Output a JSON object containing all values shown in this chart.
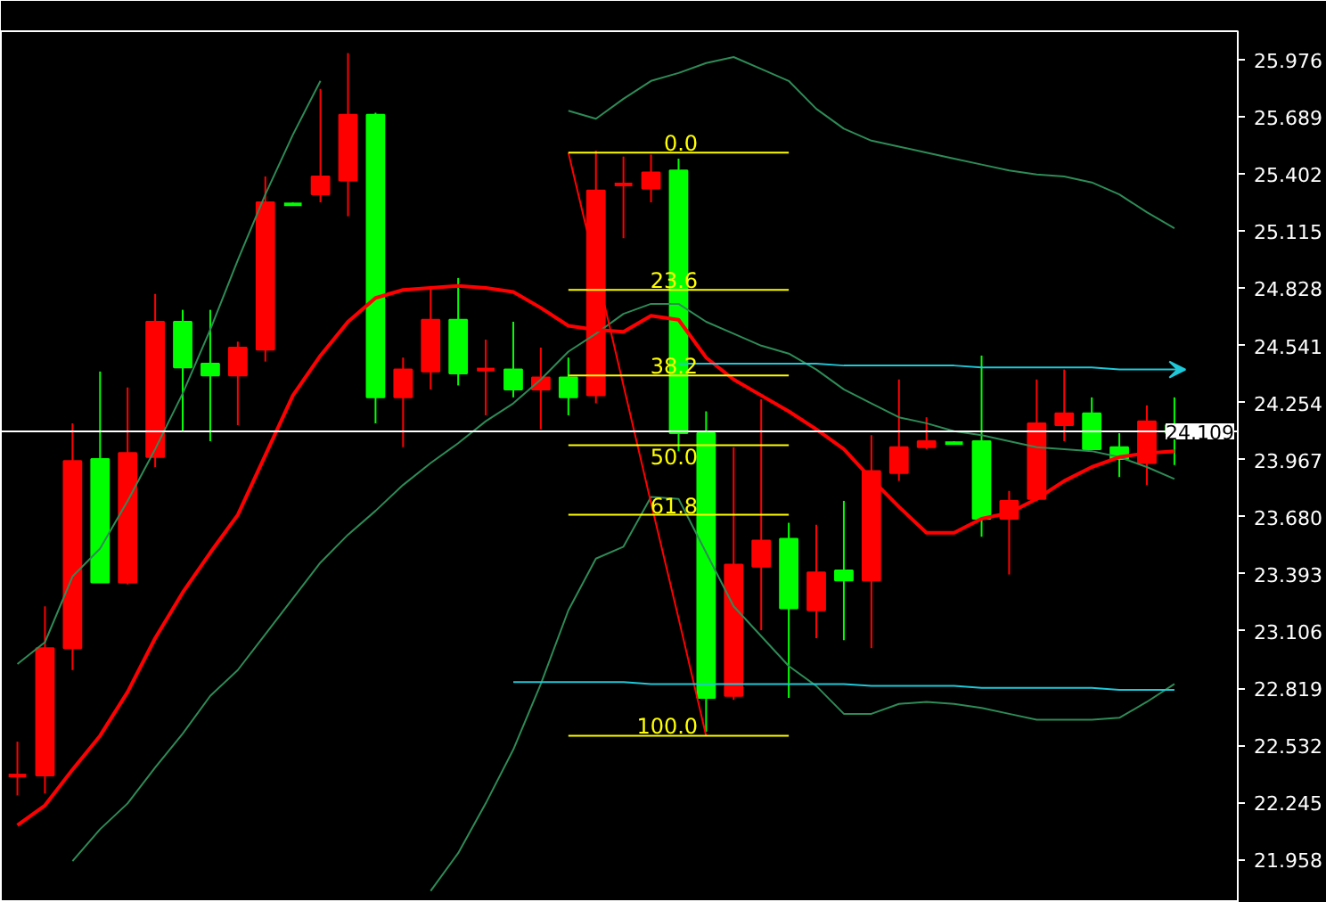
{
  "chart_data": {
    "type": "candlestick",
    "categories": [
      null,
      null,
      null,
      null,
      null,
      null,
      null,
      null,
      null,
      null,
      null,
      null,
      null,
      null,
      null,
      null,
      null,
      null,
      null,
      null,
      null,
      null,
      null,
      null,
      null,
      null,
      null,
      null,
      null,
      null,
      null,
      null,
      null,
      null,
      null,
      null,
      null,
      null,
      null,
      null,
      null,
      null,
      null
    ],
    "ohlc": [
      [
        22.37,
        22.55,
        22.28,
        22.38
      ],
      [
        22.38,
        23.23,
        22.29,
        23.02
      ],
      [
        23.02,
        24.15,
        22.91,
        23.96
      ],
      [
        23.97,
        24.41,
        23.35,
        23.35
      ],
      [
        23.35,
        24.33,
        23.34,
        24.0
      ],
      [
        23.98,
        24.8,
        23.93,
        24.66
      ],
      [
        24.66,
        24.72,
        24.11,
        24.43
      ],
      [
        24.45,
        24.72,
        24.06,
        24.39
      ],
      [
        24.39,
        24.56,
        24.14,
        24.53
      ],
      [
        24.52,
        25.39,
        24.46,
        25.26
      ],
      [
        25.26,
        25.26,
        25.25,
        25.25
      ],
      [
        25.3,
        25.83,
        25.26,
        25.39
      ],
      [
        25.37,
        26.01,
        25.19,
        25.7
      ],
      [
        25.7,
        25.71,
        24.15,
        24.28
      ],
      [
        24.28,
        24.48,
        24.03,
        24.42
      ],
      [
        24.41,
        24.83,
        24.32,
        24.67
      ],
      [
        24.67,
        24.88,
        24.34,
        24.4
      ],
      [
        24.41,
        24.57,
        24.19,
        24.42
      ],
      [
        24.42,
        24.66,
        24.28,
        24.32
      ],
      [
        24.32,
        24.53,
        24.12,
        24.38
      ],
      [
        24.38,
        24.48,
        24.19,
        24.28
      ],
      [
        24.29,
        25.52,
        24.25,
        25.32
      ],
      [
        25.34,
        25.49,
        25.08,
        25.35
      ],
      [
        25.33,
        25.5,
        25.26,
        25.41
      ],
      [
        25.42,
        25.48,
        24.01,
        24.1
      ],
      [
        24.1,
        24.21,
        22.6,
        22.77
      ],
      [
        22.78,
        24.03,
        22.76,
        23.44
      ],
      [
        23.43,
        24.27,
        23.11,
        23.56
      ],
      [
        23.57,
        23.65,
        22.77,
        23.22
      ],
      [
        23.21,
        23.64,
        23.07,
        23.4
      ],
      [
        23.41,
        23.76,
        23.06,
        23.36
      ],
      [
        23.36,
        24.09,
        23.02,
        23.91
      ],
      [
        23.9,
        24.37,
        23.86,
        24.03
      ],
      [
        24.03,
        24.18,
        24.02,
        24.06
      ],
      [
        24.06,
        24.06,
        24.05,
        24.05
      ],
      [
        24.06,
        24.49,
        23.58,
        23.67
      ],
      [
        23.67,
        23.81,
        23.39,
        23.76
      ],
      [
        23.77,
        24.37,
        23.76,
        24.15
      ],
      [
        24.14,
        24.42,
        24.06,
        24.2
      ],
      [
        24.2,
        24.28,
        24.02,
        24.02
      ],
      [
        24.03,
        24.1,
        23.88,
        23.97
      ],
      [
        23.95,
        24.24,
        23.84,
        24.16
      ],
      [
        24.14,
        24.28,
        23.94,
        24.1
      ]
    ],
    "colors": [
      "#ff0000",
      "#ff0000",
      "#ff0000",
      "#00ff00",
      "#ff0000",
      "#ff0000",
      "#00ff00",
      "#00ff00",
      "#ff0000",
      "#ff0000",
      "#00ff00",
      "#ff0000",
      "#ff0000",
      "#00ff00",
      "#ff0000",
      "#ff0000",
      "#00ff00",
      "#ff0000",
      "#00ff00",
      "#ff0000",
      "#00ff00",
      "#ff0000",
      "#ff0000",
      "#ff0000",
      "#00ff00",
      "#00ff00",
      "#ff0000",
      "#ff0000",
      "#00ff00",
      "#ff0000",
      "#00ff00",
      "#ff0000",
      "#ff0000",
      "#ff0000",
      "#00ff00",
      "#00ff00",
      "#ff0000",
      "#ff0000",
      "#ff0000",
      "#00ff00",
      "#00ff00",
      "#ff0000",
      "#00ff00"
    ],
    "series": [
      {
        "type": "line",
        "color": "#2e8b57",
        "values": [
          22.94,
          23.05,
          23.38,
          23.52,
          23.76,
          24.02,
          24.3,
          24.62,
          24.97,
          25.3,
          25.6,
          25.87,
          null,
          null,
          null,
          null,
          null,
          null,
          null,
          null,
          25.72,
          25.68,
          25.78,
          25.87,
          25.91,
          25.96,
          25.99,
          25.93,
          25.87,
          25.73,
          25.63,
          25.57,
          25.54,
          25.51,
          25.48,
          25.45,
          25.42,
          25.4,
          25.39,
          25.36,
          25.3,
          25.21,
          25.13
        ]
      },
      {
        "type": "line",
        "color": "#2e8b57",
        "values": [
          null,
          null,
          21.95,
          22.11,
          22.24,
          22.42,
          22.59,
          22.78,
          22.91,
          23.09,
          23.27,
          23.45,
          23.59,
          23.71,
          23.84,
          23.95,
          24.05,
          24.16,
          24.25,
          24.37,
          24.51,
          24.6,
          24.7,
          24.75,
          24.75,
          24.66,
          24.6,
          24.54,
          24.5,
          24.42,
          24.32,
          24.25,
          24.18,
          24.15,
          24.11,
          24.09,
          24.06,
          24.03,
          24.02,
          24.01,
          23.98,
          23.93,
          23.87
        ]
      },
      {
        "type": "line",
        "color": "#2e8b57",
        "values": [
          null,
          null,
          null,
          null,
          null,
          null,
          null,
          null,
          null,
          null,
          null,
          null,
          null,
          null,
          null,
          21.8,
          21.99,
          22.24,
          22.51,
          22.84,
          23.21,
          23.47,
          23.53,
          23.78,
          23.77,
          23.5,
          23.23,
          23.08,
          22.93,
          22.83,
          22.69,
          22.69,
          22.74,
          22.75,
          22.74,
          22.72,
          22.69,
          22.66,
          22.66,
          22.66,
          22.67,
          22.75,
          22.84
        ]
      },
      {
        "type": "line",
        "color": "#ff0000",
        "values": [
          22.13,
          22.23,
          22.41,
          22.58,
          22.8,
          23.07,
          23.3,
          23.5,
          23.69,
          23.99,
          24.29,
          24.49,
          24.66,
          24.78,
          24.82,
          24.83,
          24.84,
          24.83,
          24.81,
          24.73,
          24.64,
          24.62,
          24.61,
          24.69,
          24.67,
          24.48,
          24.37,
          24.29,
          24.21,
          24.12,
          24.02,
          23.87,
          23.73,
          23.6,
          23.6,
          23.67,
          23.7,
          23.77,
          23.86,
          23.93,
          23.98,
          24.0,
          24.01
        ]
      },
      {
        "type": "line",
        "color": "#ff0000",
        "values": [
          null,
          null,
          null,
          null,
          null,
          null,
          null,
          null,
          null,
          null,
          null,
          null,
          null,
          null,
          null,
          null,
          null,
          null,
          null,
          null,
          25.51,
          24.93,
          24.34,
          23.75,
          23.17,
          22.58,
          null,
          null,
          null,
          null,
          null,
          null,
          null,
          null,
          null,
          null,
          null,
          null,
          null,
          null,
          null,
          null,
          null
        ]
      },
      {
        "type": "line",
        "name": "0.0",
        "color": "#ffff00",
        "values": [
          null,
          null,
          null,
          null,
          null,
          null,
          null,
          null,
          null,
          null,
          null,
          null,
          null,
          null,
          null,
          null,
          null,
          null,
          null,
          null,
          25.51,
          25.51,
          25.51,
          25.51,
          25.51,
          25.51,
          25.51,
          25.51,
          25.51,
          null,
          null,
          null,
          null,
          null,
          null,
          null,
          null,
          null,
          null,
          null,
          null,
          null,
          null
        ]
      },
      {
        "type": "line",
        "name": "23.6",
        "color": "#ffff00",
        "values": [
          null,
          null,
          null,
          null,
          null,
          null,
          null,
          null,
          null,
          null,
          null,
          null,
          null,
          null,
          null,
          null,
          null,
          null,
          null,
          null,
          24.82,
          24.82,
          24.82,
          24.82,
          24.82,
          24.82,
          24.82,
          24.82,
          24.82,
          null,
          null,
          null,
          null,
          null,
          null,
          null,
          null,
          null,
          null,
          null,
          null,
          null,
          null
        ]
      },
      {
        "type": "line",
        "name": "38.2",
        "color": "#ffff00",
        "values": [
          null,
          null,
          null,
          null,
          null,
          null,
          null,
          null,
          null,
          null,
          null,
          null,
          null,
          null,
          null,
          null,
          null,
          null,
          null,
          null,
          24.39,
          24.39,
          24.39,
          24.39,
          24.39,
          24.39,
          24.39,
          24.39,
          24.39,
          null,
          null,
          null,
          null,
          null,
          null,
          null,
          null,
          null,
          null,
          null,
          null,
          null,
          null
        ]
      },
      {
        "type": "line",
        "name": "50.0",
        "color": "#ffff00",
        "values": [
          null,
          null,
          null,
          null,
          null,
          null,
          null,
          null,
          null,
          null,
          null,
          null,
          null,
          null,
          null,
          null,
          null,
          null,
          null,
          null,
          24.04,
          24.04,
          24.04,
          24.04,
          24.04,
          24.04,
          24.04,
          24.04,
          24.04,
          null,
          null,
          null,
          null,
          null,
          null,
          null,
          null,
          null,
          null,
          null,
          null,
          null,
          null
        ]
      },
      {
        "type": "line",
        "name": "61.8",
        "color": "#ffff00",
        "values": [
          null,
          null,
          null,
          null,
          null,
          null,
          null,
          null,
          null,
          null,
          null,
          null,
          null,
          null,
          null,
          null,
          null,
          null,
          null,
          null,
          23.69,
          23.69,
          23.69,
          23.69,
          23.69,
          23.69,
          23.69,
          23.69,
          23.69,
          null,
          null,
          null,
          null,
          null,
          null,
          null,
          null,
          null,
          null,
          null,
          null,
          null,
          null
        ]
      },
      {
        "type": "line",
        "name": "100.0",
        "color": "#ffff00",
        "values": [
          null,
          null,
          null,
          null,
          null,
          null,
          null,
          null,
          null,
          null,
          null,
          null,
          null,
          null,
          null,
          null,
          null,
          null,
          null,
          null,
          22.58,
          22.58,
          22.58,
          22.58,
          22.58,
          22.58,
          22.58,
          22.58,
          22.58,
          null,
          null,
          null,
          null,
          null,
          null,
          null,
          null,
          null,
          null,
          null,
          null,
          null,
          null
        ]
      },
      {
        "type": "line",
        "color": "#1fc8d8",
        "values": [
          null,
          null,
          null,
          null,
          null,
          null,
          null,
          null,
          null,
          null,
          null,
          null,
          null,
          null,
          null,
          null,
          null,
          null,
          null,
          null,
          null,
          null,
          null,
          null,
          24.45,
          24.45,
          24.45,
          24.45,
          24.45,
          24.45,
          24.44,
          24.44,
          24.44,
          24.44,
          24.44,
          24.43,
          24.43,
          24.43,
          24.43,
          24.43,
          24.42,
          24.42,
          24.42
        ]
      },
      {
        "type": "line",
        "color": "#1fc8d8",
        "values": [
          null,
          null,
          null,
          null,
          null,
          null,
          null,
          null,
          null,
          null,
          null,
          null,
          null,
          null,
          null,
          null,
          null,
          null,
          22.85,
          22.85,
          22.85,
          22.85,
          22.85,
          22.84,
          22.84,
          22.84,
          22.84,
          22.84,
          22.84,
          22.84,
          22.84,
          22.83,
          22.83,
          22.83,
          22.83,
          22.82,
          22.82,
          22.82,
          22.82,
          22.82,
          22.81,
          22.81,
          22.81
        ]
      }
    ],
    "ylim": [
      21.74,
      26.12
    ],
    "yticks": [
      25.976,
      25.689,
      25.402,
      25.115,
      24.828,
      24.541,
      24.254,
      23.967,
      {
        "value": 23.68,
        "label": "23.680"
      },
      23.393,
      23.106,
      22.819,
      22.532,
      22.245,
      21.958
    ],
    "ref_lines": [
      {
        "axis": "y",
        "value": 24.109,
        "label": "24.109",
        "color": "#ffffff"
      }
    ],
    "tick_labels": "y",
    "grid": false
  }
}
